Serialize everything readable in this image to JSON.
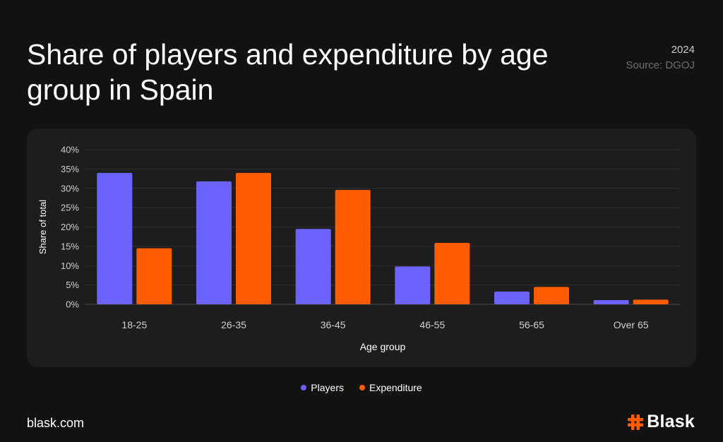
{
  "header": {
    "title": "Share of players and expenditure by age group in Spain",
    "year": "2024",
    "source": "Source: DGOJ"
  },
  "colors": {
    "players": "#6c63ff",
    "expenditure": "#ff5c00",
    "background": "#121212",
    "panel": "#1d1d1d"
  },
  "legend": {
    "players": "Players",
    "expenditure": "Expenditure"
  },
  "footer": {
    "site": "blask.com",
    "brand": "Blask"
  },
  "chart_data": {
    "type": "bar",
    "categories": [
      "18-25",
      "26-35",
      "36-45",
      "46-55",
      "56-65",
      "Over 65"
    ],
    "series": [
      {
        "name": "Players",
        "values": [
          34,
          31.8,
          19.5,
          9.8,
          3.3,
          1.1
        ]
      },
      {
        "name": "Expenditure",
        "values": [
          14.5,
          34,
          29.6,
          15.9,
          4.5,
          1.2
        ]
      }
    ],
    "title": "Share of players and expenditure by age group in Spain",
    "xlabel": "Age group",
    "ylabel": "Share of total",
    "ylim": [
      0,
      40
    ],
    "yticks": [
      "0%",
      "5%",
      "10%",
      "15%",
      "20%",
      "25%",
      "30%",
      "35%",
      "40%"
    ],
    "grid": true,
    "legend_position": "bottom-center"
  }
}
